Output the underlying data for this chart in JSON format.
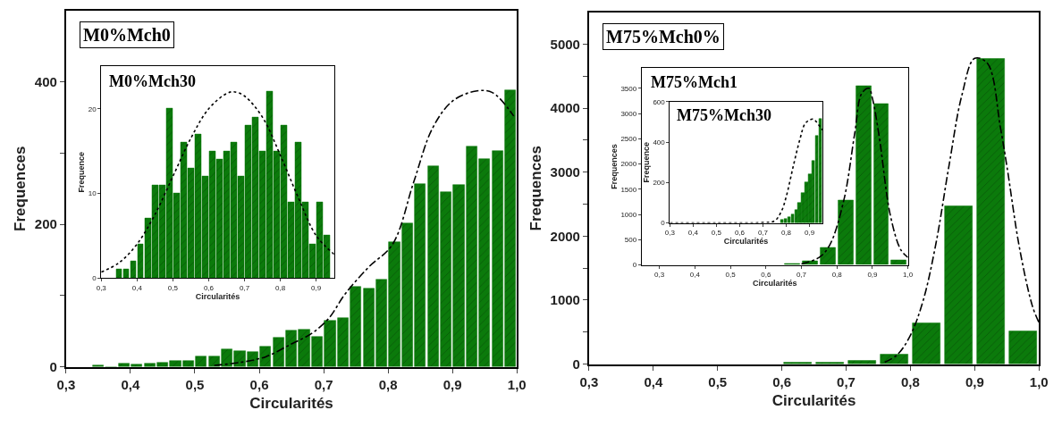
{
  "chart_data": [
    {
      "type": "histogram",
      "title": "M0%Mch0",
      "xlabel": "Circularités",
      "ylabel": "Frequences",
      "xlim": [
        0.3,
        1.0
      ],
      "ylim": [
        0,
        500
      ],
      "marker": "none",
      "xticks": [
        {
          "value": 0.3,
          "label": "0,3"
        },
        {
          "value": 0.4,
          "label": "0,4"
        },
        {
          "value": 0.5,
          "label": "0,5"
        },
        {
          "value": 0.6,
          "label": "0,6"
        },
        {
          "value": 0.7,
          "label": "0,7"
        },
        {
          "value": 0.8,
          "label": "0,8"
        },
        {
          "value": 0.9,
          "label": "0,9"
        },
        {
          "value": 1.0,
          "label": "1,0"
        }
      ],
      "yticks": [
        0,
        {
          "value": 100,
          "label": null
        },
        200,
        {
          "value": 300,
          "label": null
        },
        400
      ],
      "series": [
        {
          "color": "#0b7a0b",
          "bins": [
            0.34,
            0.36,
            0.38,
            0.4,
            0.42,
            0.44,
            0.46,
            0.48,
            0.5,
            0.52,
            0.54,
            0.56,
            0.58,
            0.6,
            0.62,
            0.64,
            0.66,
            0.68,
            0.7,
            0.72,
            0.74,
            0.76,
            0.78,
            0.8,
            0.82,
            0.84,
            0.86,
            0.88,
            0.9,
            0.92,
            0.94,
            0.96,
            0.98,
            1.0
          ],
          "values": [
            2,
            0,
            4,
            3,
            5,
            6,
            8,
            8,
            14,
            14,
            25,
            22,
            21,
            29,
            41,
            51,
            52,
            42,
            65,
            69,
            113,
            110,
            123,
            175,
            201,
            257,
            282,
            246,
            256,
            309,
            292,
            303,
            388
          ]
        },
        {
          "type": "line",
          "color": "#000000",
          "line_style": "dashed",
          "x": [
            0.53,
            0.57,
            0.61,
            0.65,
            0.68,
            0.707,
            0.734,
            0.77,
            0.807,
            0.84,
            0.869,
            0.9,
            0.936,
            0.962,
            0.995
          ],
          "values": [
            2,
            6,
            14,
            32,
            46,
            67,
            103,
            140,
            172,
            260,
            335,
            373,
            387,
            385,
            352
          ]
        }
      ]
    },
    {
      "type": "histogram",
      "title": "M0%Mch30",
      "xlabel": "Circularités",
      "ylabel": "Frequence",
      "xlim": [
        0.3,
        0.95
      ],
      "ylim": [
        0,
        25
      ],
      "marker": "none",
      "xticks": [
        {
          "value": 0.3,
          "label": "0,3"
        },
        {
          "value": 0.4,
          "label": "0,4"
        },
        {
          "value": 0.5,
          "label": "0,5"
        },
        {
          "value": 0.6,
          "label": "0,6"
        },
        {
          "value": 0.7,
          "label": "0,7"
        },
        {
          "value": 0.8,
          "label": "0,8"
        },
        {
          "value": 0.9,
          "label": "0,9"
        }
      ],
      "yticks": [
        0,
        10,
        20
      ],
      "series": [
        {
          "color": "#0b7a0b",
          "bins": [
            0.34,
            0.36,
            0.38,
            0.4,
            0.42,
            0.44,
            0.46,
            0.48,
            0.5,
            0.52,
            0.54,
            0.56,
            0.58,
            0.6,
            0.62,
            0.64,
            0.66,
            0.68,
            0.7,
            0.72,
            0.74,
            0.76,
            0.78,
            0.8,
            0.82,
            0.84,
            0.86,
            0.88,
            0.9,
            0.92,
            0.94
          ],
          "values": [
            1,
            1,
            2,
            4,
            7,
            11,
            11,
            20,
            10,
            16,
            13,
            17,
            12,
            15,
            14,
            15,
            16,
            12,
            18,
            19,
            15,
            22,
            15,
            18,
            9,
            16,
            9,
            4,
            9,
            5
          ]
        },
        {
          "type": "line",
          "color": "#000000",
          "line_style": "dotted",
          "x": [
            0.3,
            0.35,
            0.4,
            0.45,
            0.5,
            0.55,
            0.6,
            0.65,
            0.67,
            0.7,
            0.75,
            0.8,
            0.85,
            0.9,
            0.95
          ],
          "values": [
            0.7,
            1.8,
            4,
            7.5,
            12,
            16.5,
            20,
            21.8,
            22,
            21.5,
            19,
            14.5,
            9.5,
            5,
            2.8
          ]
        }
      ]
    },
    {
      "type": "histogram",
      "title": "M75%Mch0%",
      "xlabel": "Circularités",
      "ylabel": "Frequences",
      "xlim": [
        0.3,
        1.0
      ],
      "ylim": [
        0,
        5500
      ],
      "marker": "none",
      "xticks": [
        {
          "value": 0.3,
          "label": "0,3"
        },
        {
          "value": 0.4,
          "label": "0,4"
        },
        {
          "value": 0.5,
          "label": "0,5"
        },
        {
          "value": 0.6,
          "label": "0,6"
        },
        {
          "value": 0.7,
          "label": "0,7"
        },
        {
          "value": 0.8,
          "label": "0,8"
        },
        {
          "value": 0.9,
          "label": "0,9"
        },
        {
          "value": 1.0,
          "label": "1,0"
        }
      ],
      "yticks": [
        0,
        {
          "value": 500,
          "label": null
        },
        1000,
        {
          "value": 1500,
          "label": null
        },
        2000,
        {
          "value": 2500,
          "label": null
        },
        3000,
        {
          "value": 3500,
          "label": null
        },
        4000,
        {
          "value": 4500,
          "label": null
        },
        5000
      ],
      "series": [
        {
          "color": "#0b7a0b",
          "bins": [
            0.6,
            0.65,
            0.7,
            0.75,
            0.8,
            0.85,
            0.9,
            0.95,
            1.0
          ],
          "values": [
            20,
            30,
            50,
            150,
            640,
            2470,
            4770,
            520
          ]
        },
        {
          "type": "line",
          "color": "#000000",
          "line_style": "dashed",
          "x": [
            0.76,
            0.78,
            0.8,
            0.82,
            0.84,
            0.86,
            0.88,
            0.9,
            0.92,
            0.94,
            0.95,
            0.97,
            0.99,
            1.0
          ],
          "values": [
            30,
            150,
            450,
            1000,
            1900,
            3100,
            4200,
            4780,
            4700,
            3700,
            3100,
            1800,
            900,
            650
          ]
        }
      ]
    },
    {
      "type": "histogram",
      "title": "M75%Mch1",
      "xlabel": "Circularités",
      "ylabel": "Frequences",
      "xlim": [
        0.25,
        1.0
      ],
      "ylim": [
        0,
        3900
      ],
      "marker": "none",
      "xticks": [
        {
          "value": 0.3,
          "label": "0,3"
        },
        {
          "value": 0.4,
          "label": "0,4"
        },
        {
          "value": 0.5,
          "label": "0,5"
        },
        {
          "value": 0.6,
          "label": "0,6"
        },
        {
          "value": 0.7,
          "label": "0,7"
        },
        {
          "value": 0.8,
          "label": "0,8"
        },
        {
          "value": 0.9,
          "label": "0,9"
        },
        {
          "value": 1.0,
          "label": "1,0"
        }
      ],
      "yticks": [
        0,
        500,
        1000,
        1500,
        2000,
        2500,
        3000,
        3500
      ],
      "series": [
        {
          "color": "#0b7a0b",
          "bins": [
            0.65,
            0.7,
            0.75,
            0.8,
            0.85,
            0.9,
            0.95,
            1.0
          ],
          "values": [
            20,
            80,
            340,
            1290,
            3540,
            3200,
            90
          ]
        },
        {
          "type": "line",
          "color": "#000000",
          "line_style": "dashed",
          "x": [
            0.7,
            0.75,
            0.78,
            0.82,
            0.85,
            0.87,
            0.89,
            0.9,
            0.92,
            0.95,
            0.98,
            1.0
          ],
          "values": [
            20,
            150,
            400,
            1300,
            2600,
            3400,
            3500,
            3300,
            2500,
            1000,
            300,
            150
          ]
        }
      ]
    },
    {
      "type": "histogram",
      "title": "M75%Mch30",
      "xlabel": "Circularités",
      "ylabel": "Frequence",
      "xlim": [
        0.3,
        0.955
      ],
      "ylim": [
        0,
        600
      ],
      "marker": "none",
      "xticks": [
        {
          "value": 0.3,
          "label": "0,3"
        },
        {
          "value": 0.4,
          "label": "0,4"
        },
        {
          "value": 0.5,
          "label": "0,5"
        },
        {
          "value": 0.6,
          "label": "0,6"
        },
        {
          "value": 0.7,
          "label": "0,7"
        },
        {
          "value": 0.8,
          "label": "0,8"
        },
        {
          "value": 0.9,
          "label": "0,9"
        }
      ],
      "yticks": [
        0,
        200,
        400,
        600
      ],
      "series": [
        {
          "color": "#0b7a0b",
          "bins": [
            0.775,
            0.79,
            0.805,
            0.82,
            0.835,
            0.85,
            0.865,
            0.88,
            0.895,
            0.91,
            0.925,
            0.94,
            0.955
          ],
          "values": [
            14,
            22,
            29,
            43,
            64,
            100,
            150,
            200,
            243,
            307,
            430,
            514
          ]
        },
        {
          "type": "line",
          "color": "#000000",
          "line_style": "dotted",
          "x": [
            0.3,
            0.5,
            0.7,
            0.75,
            0.78,
            0.8,
            0.83,
            0.86,
            0.88,
            0.9,
            0.916,
            0.93,
            0.955
          ],
          "values": [
            0,
            0,
            2,
            10,
            60,
            130,
            280,
            420,
            490,
            510,
            514,
            500,
            460
          ]
        }
      ]
    }
  ]
}
